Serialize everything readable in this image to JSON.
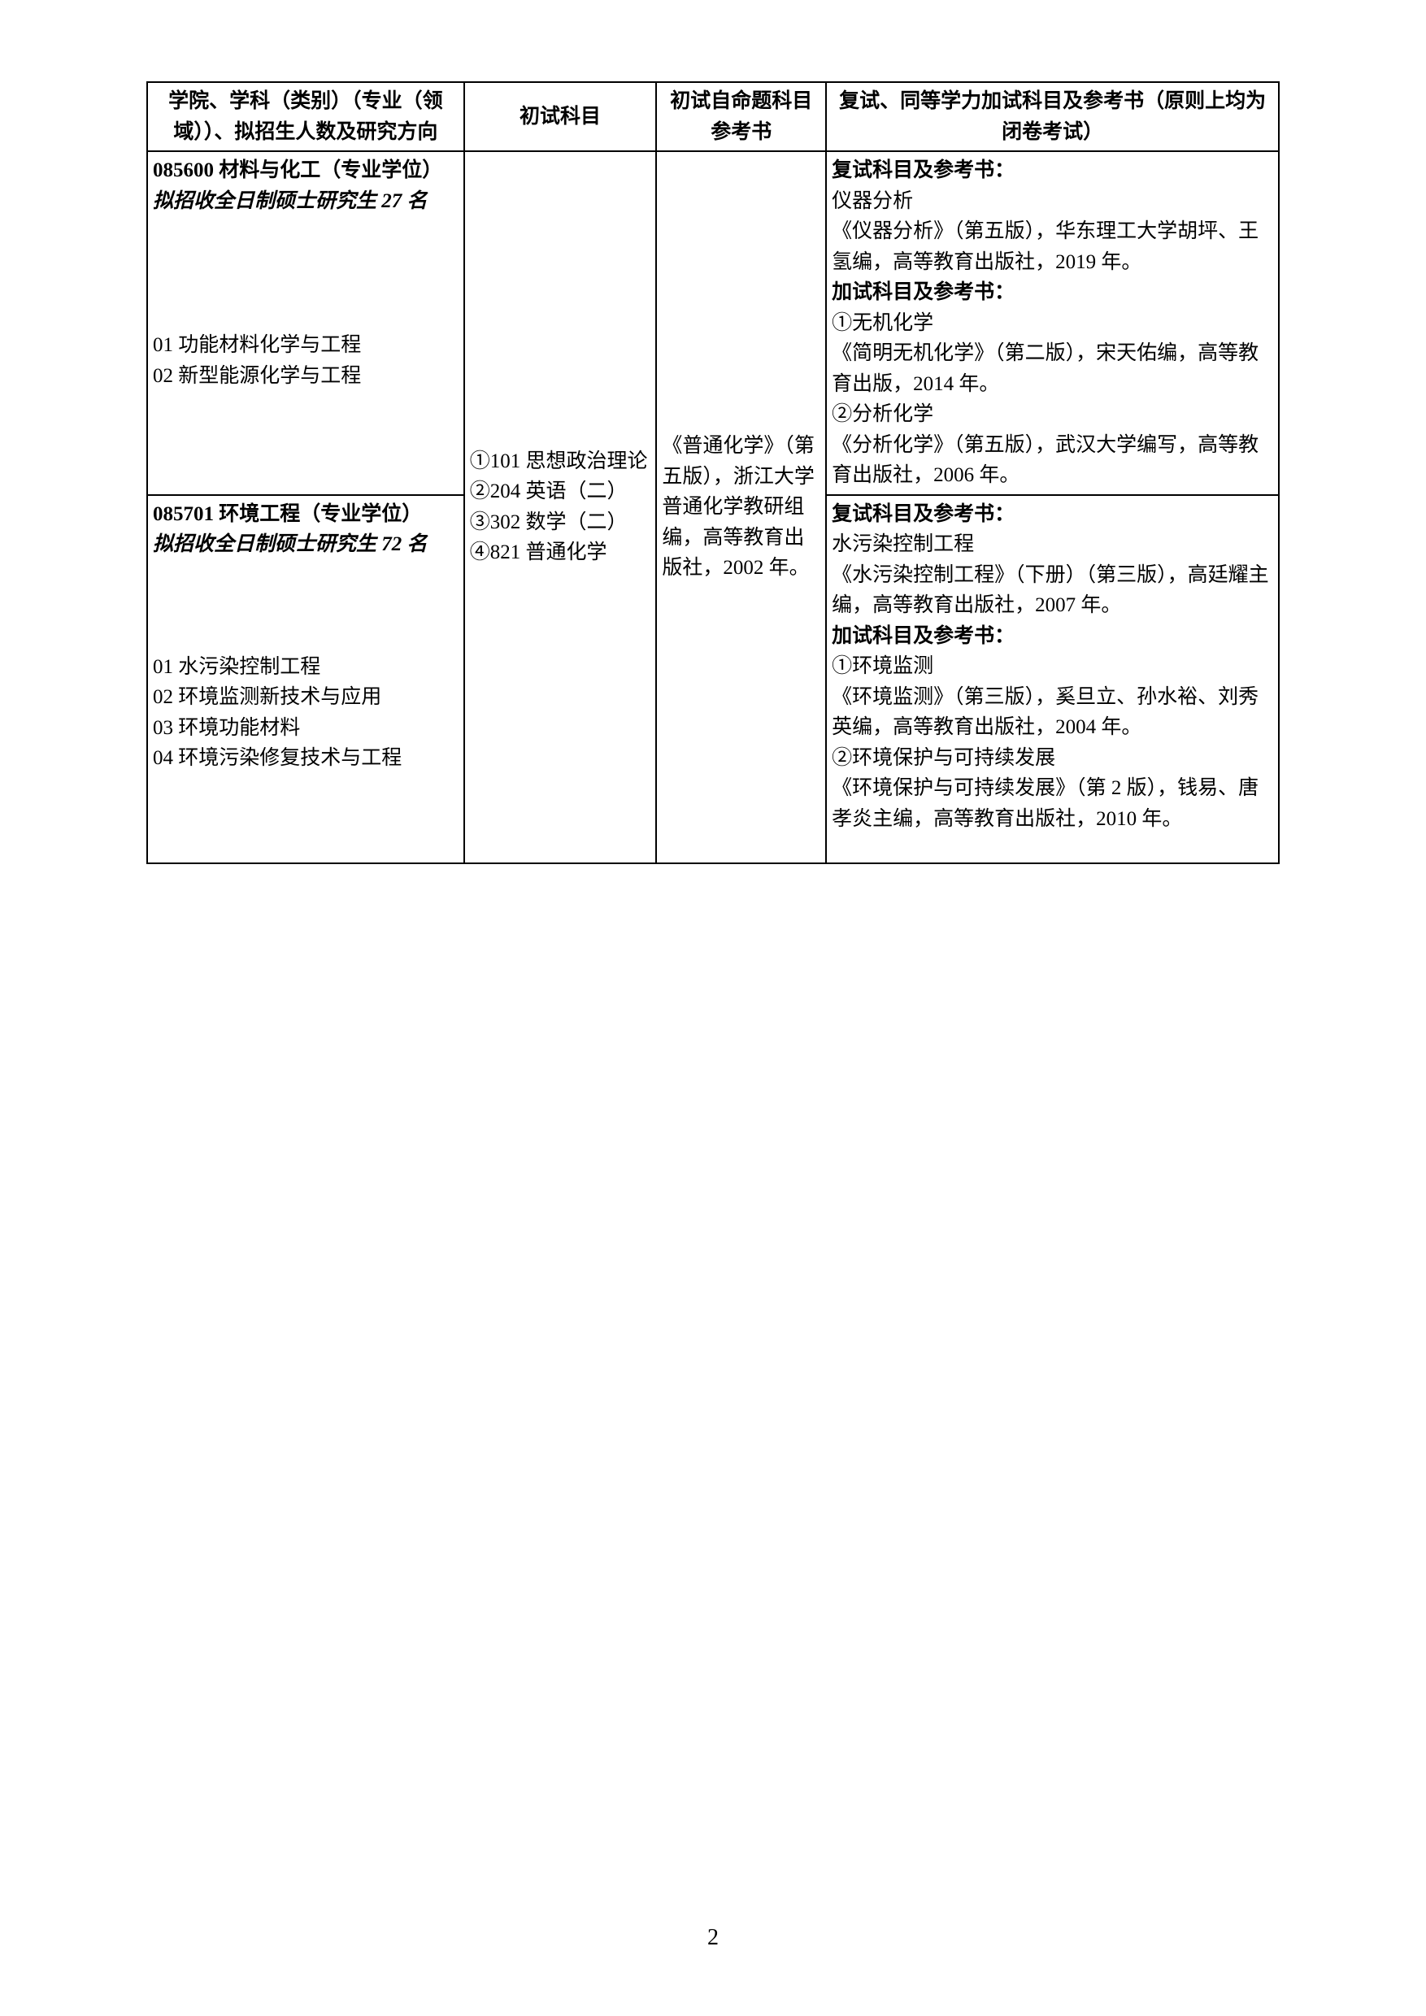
{
  "header": {
    "col1": "学院、学科（类别）（专业（领域））、拟招生人数及研究方向",
    "col2": "初试科目",
    "col3": "初试自命题科目参考书",
    "col4": "复试、同等学力加试科目及参考书（原则上均为闭卷考试）"
  },
  "row1": {
    "title": "085600 材料与化工（专业学位）",
    "subtitle": "拟招收全日制硕士研究生 27 名",
    "directions": "01 功能材料化学与工程\n02 新型能源化学与工程"
  },
  "row2": {
    "title": "085701 环境工程（专业学位）",
    "subtitle": "拟招收全日制硕士研究生 72 名",
    "directions": "01 水污染控制工程\n02 环境监测新技术与应用\n03 环境功能材料\n04 环境污染修复技术与工程"
  },
  "exam_subjects": "①101 思想政治理论\n②204 英语（二）\n③302 数学（二）\n④821 普通化学",
  "reference_books": "《普通化学》（第五版），浙江大学普通化学教研组编，高等教育出版社，2002 年。",
  "retest1": {
    "title": "复试科目及参考书：",
    "line1": "仪器分析",
    "line2": "《仪器分析》（第五版），华东理工大学胡坪、王氢编，高等教育出版社，2019 年。",
    "addtest_title": "加试科目及参考书：",
    "item1_title": "①无机化学",
    "item1_text": "《简明无机化学》（第二版），宋天佑编，高等教育出版，2014 年。",
    "item2_title": "②分析化学",
    "item2_text": "《分析化学》（第五版），武汉大学编写，高等教育出版社，2006 年。"
  },
  "retest2": {
    "title": "复试科目及参考书：",
    "line1": "水污染控制工程",
    "line2": "《水污染控制工程》（下册）（第三版），高廷耀主编，高等教育出版社，2007 年。",
    "addtest_title": "加试科目及参考书：",
    "item1_title": "①环境监测",
    "item1_text": "《环境监测》（第三版），奚旦立、孙水裕、刘秀英编，高等教育出版社，2004 年。",
    "item2_title": "②环境保护与可持续发展",
    "item2_text": "《环境保护与可持续发展》（第 2 版），钱易、唐孝炎主编，高等教育出版社，2010 年。"
  },
  "page_number": "2"
}
